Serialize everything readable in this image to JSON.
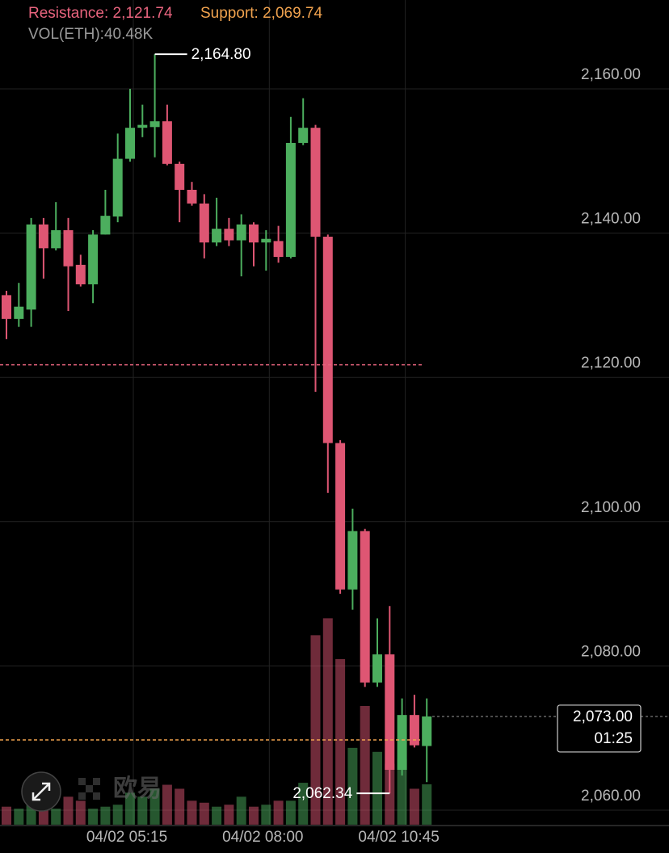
{
  "chart_data": {
    "type": "candlestick",
    "resistance": {
      "value": 2121.74,
      "label": "Resistance: 2,121.74"
    },
    "support": {
      "value": 2069.74,
      "label": "Support: 2,069.74"
    },
    "volume_label": "VOL(ETH):40.48K",
    "categories": [
      null,
      null,
      null,
      null,
      null,
      null,
      null,
      null,
      null,
      null,
      "04/02 05:15",
      null,
      null,
      null,
      null,
      null,
      null,
      null,
      null,
      null,
      null,
      "04/02 08:00",
      null,
      null,
      null,
      null,
      null,
      null,
      null,
      null,
      null,
      null,
      "04/02 10:45",
      null,
      null
    ],
    "open": [
      2131.4,
      2128.1,
      2129.4,
      2141.2,
      2137.9,
      2140.4,
      2135.6,
      2132.9,
      2139.8,
      2142.3,
      2150.3,
      2154.6,
      2154.7,
      2155.5,
      2149.6,
      2146.0,
      2144.1,
      2138.7,
      2140.6,
      2139.0,
      2141.2,
      2138.7,
      2138.9,
      2136.7,
      2152.5,
      2154.6,
      2139.5,
      2110.9,
      2090.6,
      2098.7,
      2077.7,
      2081.6,
      2065.6,
      2073.2,
      2068.9
    ],
    "high": [
      2132.0,
      2133.1,
      2142.1,
      2142.1,
      2144.3,
      2142.1,
      2137.0,
      2140.4,
      2146.0,
      2153.8,
      2160.0,
      2157.8,
      2164.8,
      2157.8,
      2149.9,
      2147.1,
      2145.4,
      2144.9,
      2142.1,
      2142.6,
      2141.5,
      2140.4,
      2141.0,
      2156.1,
      2158.7,
      2155.0,
      2139.8,
      2111.3,
      2101.8,
      2099.0,
      2086.6,
      2088.3,
      2075.5,
      2076.0,
      2075.5
    ],
    "low": [
      2125.3,
      2127.0,
      2127.0,
      2133.7,
      2137.6,
      2129.2,
      2132.6,
      2130.3,
      2139.8,
      2141.5,
      2149.9,
      2153.3,
      2150.5,
      2149.4,
      2141.5,
      2143.8,
      2136.5,
      2138.2,
      2138.2,
      2134.0,
      2135.4,
      2134.8,
      2135.9,
      2136.5,
      2152.2,
      2118.0,
      2104.0,
      2090.0,
      2087.8,
      2077.1,
      2077.1,
      2062.34,
      2064.8,
      2068.7,
      2063.9
    ],
    "close": [
      2128.1,
      2129.8,
      2141.2,
      2137.9,
      2140.4,
      2135.4,
      2132.9,
      2139.8,
      2142.4,
      2150.3,
      2154.6,
      2155.0,
      2155.5,
      2149.6,
      2146.0,
      2144.1,
      2138.7,
      2140.6,
      2139.0,
      2141.2,
      2138.7,
      2139.2,
      2136.7,
      2152.5,
      2154.6,
      2139.5,
      2110.9,
      2090.6,
      2098.7,
      2077.7,
      2081.6,
      2065.6,
      2073.2,
      2069.0,
      2073.0
    ],
    "volume": [
      18000,
      16000,
      20000,
      18000,
      16000,
      28000,
      24000,
      16000,
      18000,
      20000,
      32000,
      28000,
      36000,
      40000,
      36000,
      24000,
      22000,
      18000,
      20000,
      28000,
      18000,
      20000,
      24000,
      24000,
      42000,
      190000,
      207000,
      166000,
      77000,
      119000,
      73000,
      61000,
      66000,
      36000,
      40480
    ],
    "volume_ylim": [
      0,
      250000
    ],
    "up_color": "#4cae5e",
    "down_color": "#de5673",
    "high_label": "2,164.80",
    "low_label": "2,062.34",
    "last_price": {
      "value": 2073.0,
      "label": "2,073.00",
      "countdown": "01:25"
    },
    "watermark": "欧易",
    "ylim": [
      2058,
      2172
    ],
    "yticks": [
      {
        "value": 2060,
        "label": "2,060.00"
      },
      {
        "value": 2080,
        "label": "2,080.00"
      },
      {
        "value": 2100,
        "label": "2,100.00"
      },
      {
        "value": 2120,
        "label": "2,120.00"
      },
      {
        "value": 2140,
        "label": "2,140.00"
      },
      {
        "value": 2160,
        "label": "2,160.00"
      }
    ],
    "grid": true
  }
}
